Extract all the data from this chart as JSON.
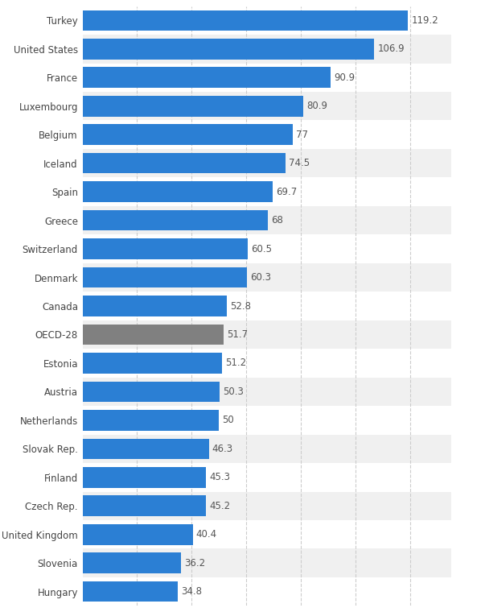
{
  "categories": [
    "Hungary",
    "Slovenia",
    "United Kingdom",
    "Czech Rep.",
    "Finland",
    "Slovak Rep.",
    "Netherlands",
    "Austria",
    "Estonia",
    "OECD-28",
    "Canada",
    "Denmark",
    "Switzerland",
    "Greece",
    "Spain",
    "Iceland",
    "Belgium",
    "Luxembourg",
    "France",
    "United States",
    "Turkey"
  ],
  "values": [
    34.8,
    36.2,
    40.4,
    45.2,
    45.3,
    46.3,
    50,
    50.3,
    51.2,
    51.7,
    52.8,
    60.3,
    60.5,
    68,
    69.7,
    74.5,
    77,
    80.9,
    90.9,
    106.9,
    119.2
  ],
  "bar_colors": [
    "#2b7fd4",
    "#2b7fd4",
    "#2b7fd4",
    "#2b7fd4",
    "#2b7fd4",
    "#2b7fd4",
    "#2b7fd4",
    "#2b7fd4",
    "#2b7fd4",
    "#808080",
    "#2b7fd4",
    "#2b7fd4",
    "#2b7fd4",
    "#2b7fd4",
    "#2b7fd4",
    "#2b7fd4",
    "#2b7fd4",
    "#2b7fd4",
    "#2b7fd4",
    "#2b7fd4",
    "#2b7fd4"
  ],
  "row_colors": [
    "#ffffff",
    "#f0f0f0"
  ],
  "background_color": "#ffffff",
  "label_color": "#444444",
  "value_color": "#555555",
  "grid_color": "#cccccc",
  "bar_height": 0.72,
  "xlim": [
    0,
    135
  ],
  "label_fontsize": 8.5,
  "value_fontsize": 8.5
}
